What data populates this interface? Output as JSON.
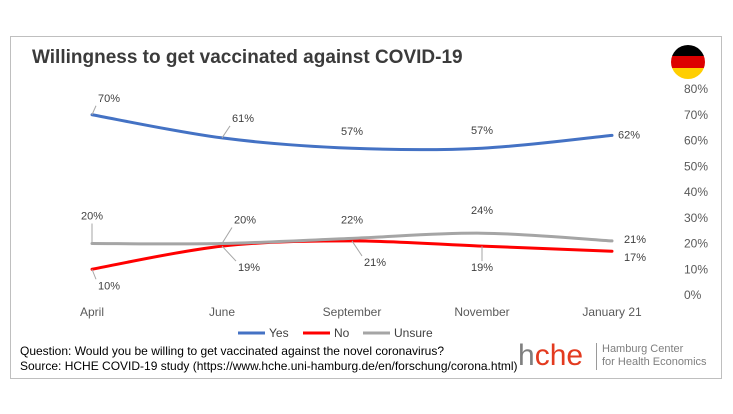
{
  "header": {
    "title": "Willingness to get vaccinated against COVID-19",
    "flag_colors": [
      "#000000",
      "#dd0000",
      "#ffce00"
    ],
    "flag_icon": "germany-flag-icon"
  },
  "chart_data": {
    "type": "line",
    "categories": [
      "April",
      "June",
      "September",
      "November",
      "January 21"
    ],
    "y_ticks": [
      "0%",
      "10%",
      "20%",
      "30%",
      "40%",
      "50%",
      "60%",
      "70%",
      "80%"
    ],
    "ylim": [
      0,
      80
    ],
    "y_axis_side": "right",
    "grid": false,
    "legend_position": "bottom",
    "series": [
      {
        "name": "Yes",
        "color": "#4472c4",
        "values": [
          70,
          61,
          57,
          57,
          62
        ],
        "labels": [
          "70%",
          "61%",
          "57%",
          "57%",
          "62%"
        ]
      },
      {
        "name": "No",
        "color": "#ff0000",
        "values": [
          10,
          19,
          21,
          19,
          17
        ],
        "labels": [
          "10%",
          "19%",
          "21%",
          "19%",
          "17%"
        ]
      },
      {
        "name": "Unsure",
        "color": "#a5a5a5",
        "values": [
          20,
          20,
          22,
          24,
          21
        ],
        "labels": [
          "20%",
          "20%",
          "22%",
          "24%",
          "21%"
        ]
      }
    ]
  },
  "footer": {
    "question": "Question: Would you be willing to get vaccinated against the novel coronavirus?",
    "source": "Source: HCHE COVID-19 study (https://www.hche.uni-hamburg.de/en/forschung/corona.html)"
  },
  "logo": {
    "mark_h": "h",
    "mark_c": "c",
    "mark_he": "he",
    "line1": "Hamburg Center",
    "line2": "for Health Economics",
    "accent_color": "#e33a1f"
  }
}
